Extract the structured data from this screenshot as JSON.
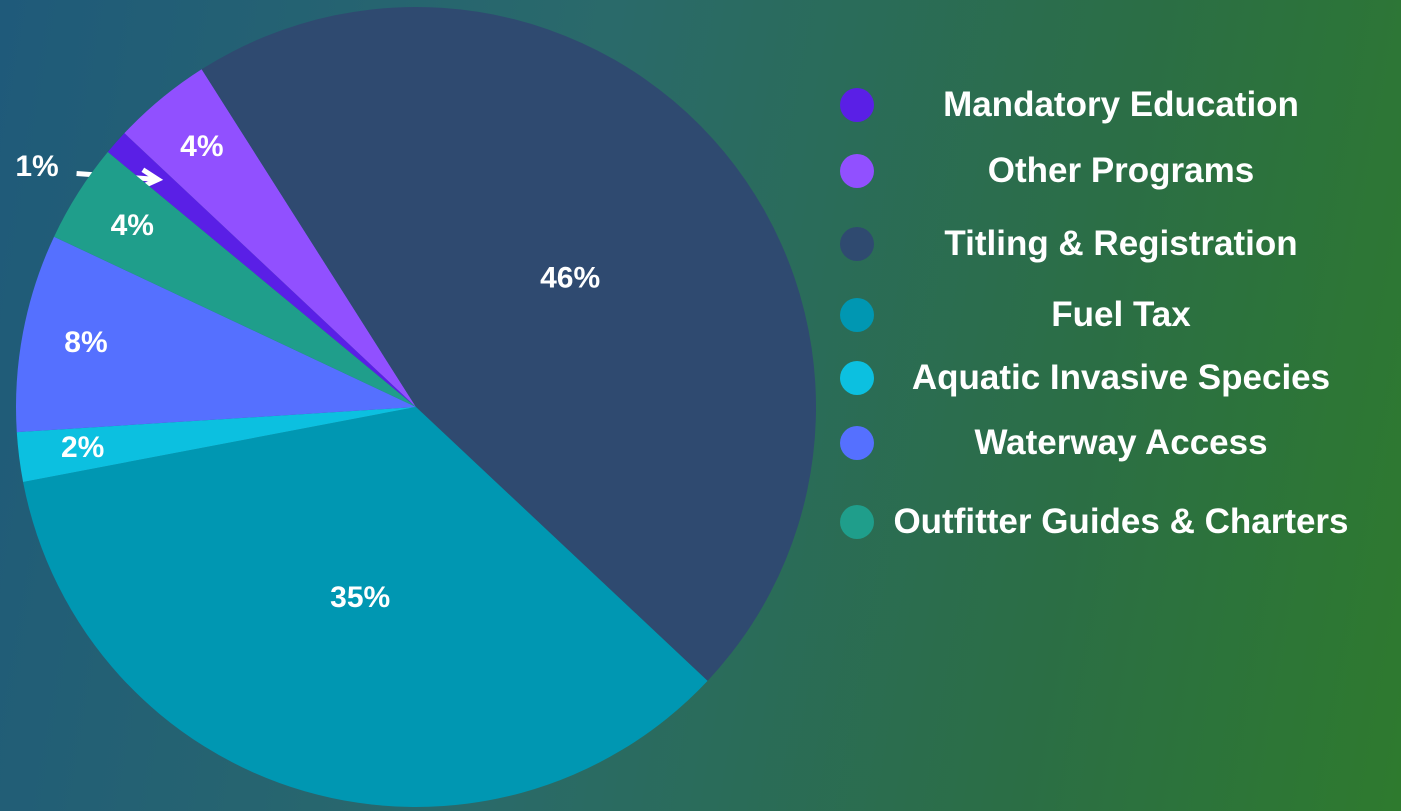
{
  "chart_data": {
    "type": "pie",
    "categories": [
      "Mandatory Education",
      "Other Programs",
      "Titling & Registration",
      "Fuel Tax",
      "Aquatic Invasive Species",
      "Waterway Access",
      "Outfitter Guides & Charters"
    ],
    "values": [
      1,
      4,
      46,
      35,
      2,
      8,
      4
    ],
    "value_labels": [
      "1%",
      "4%",
      "46%",
      "35%",
      "2%",
      "8%",
      "4%"
    ],
    "colors": [
      "#5a1fe6",
      "#9150ff",
      "#2f4a70",
      "#0097b2",
      "#0cc0e0",
      "#5570ff",
      "#1f9e8b"
    ]
  }
}
